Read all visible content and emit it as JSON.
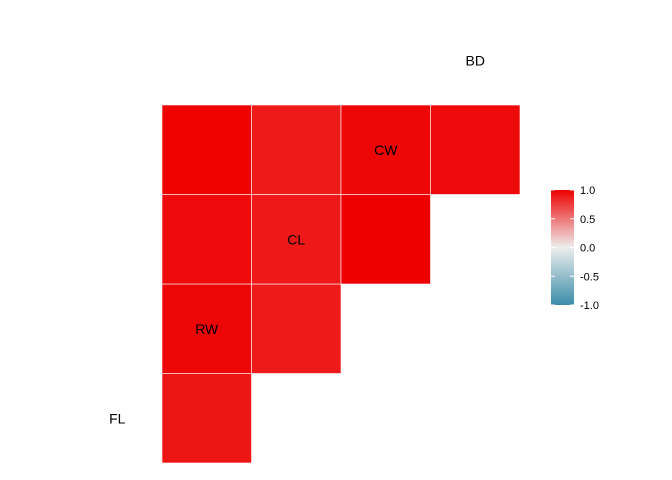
{
  "chart_data": {
    "type": "heatmap",
    "subtype": "correlation-lower-triangle",
    "variables": [
      "FL",
      "RW",
      "CL",
      "CW",
      "BD"
    ],
    "cells": [
      {
        "row": "RW",
        "col": "FL",
        "value": 0.91
      },
      {
        "row": "CL",
        "col": "FL",
        "value": 0.98
      },
      {
        "row": "CL",
        "col": "RW",
        "value": 0.89
      },
      {
        "row": "CW",
        "col": "FL",
        "value": 0.96
      },
      {
        "row": "CW",
        "col": "RW",
        "value": 0.9
      },
      {
        "row": "CW",
        "col": "CL",
        "value": 1.0
      },
      {
        "row": "BD",
        "col": "FL",
        "value": 0.99
      },
      {
        "row": "BD",
        "col": "RW",
        "value": 0.89
      },
      {
        "row": "BD",
        "col": "CL",
        "value": 0.98
      },
      {
        "row": "BD",
        "col": "CW",
        "value": 0.96
      }
    ],
    "legend": {
      "position": "right",
      "range": [
        -1,
        1
      ],
      "ticks": [
        "1.0",
        "0.5",
        "0.0",
        "-0.5",
        "-1.0"
      ],
      "tick_values": [
        1,
        0.5,
        0,
        -0.5,
        -1
      ],
      "colors": {
        "low": "#3A8CA8",
        "mid": "#EEEEEE",
        "high": "#EE0000"
      }
    },
    "grid": false
  }
}
